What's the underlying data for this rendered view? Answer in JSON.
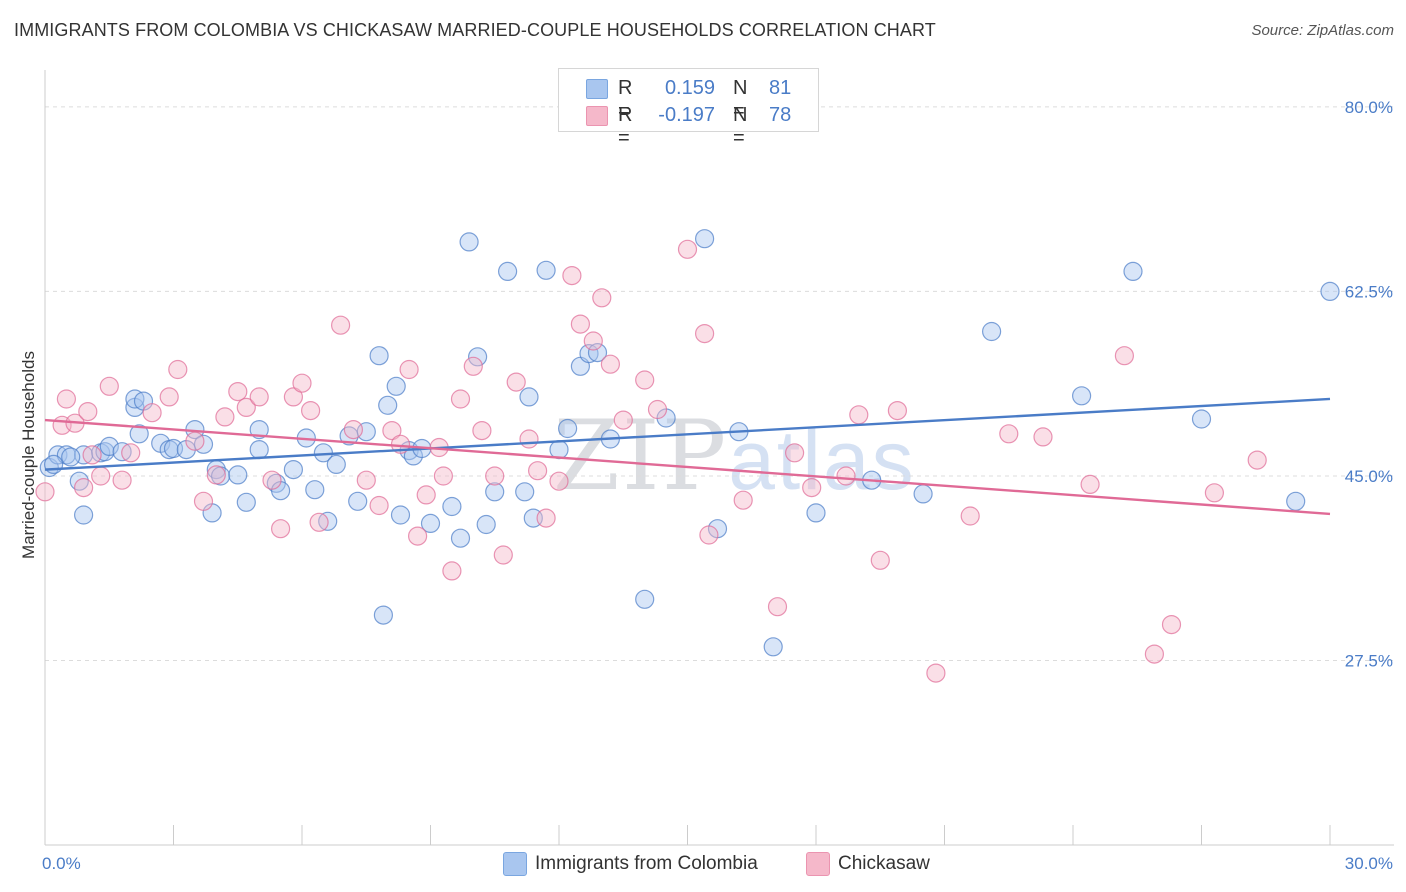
{
  "header": {
    "title": "IMMIGRANTS FROM COLOMBIA VS CHICKASAW MARRIED-COUPLE HOUSEHOLDS CORRELATION CHART",
    "source": "Source: ZipAtlas.com"
  },
  "watermark": {
    "zip": "ZIP",
    "atlas": "atlas"
  },
  "legend": {
    "rows": [
      {
        "r_label": "R =",
        "r_value": "0.159",
        "n_label": "N =",
        "n_value": "81",
        "color": "#a9c6ef"
      },
      {
        "r_label": "R =",
        "r_value": "-0.197",
        "n_label": "N =",
        "n_value": "78",
        "color": "#f5b8ca"
      }
    ]
  },
  "chart_data": {
    "type": "scatter",
    "title": "IMMIGRANTS FROM COLOMBIA VS CHICKASAW MARRIED-COUPLE HOUSEHOLDS CORRELATION CHART",
    "xlabel": "",
    "ylabel": "Married-couple Households",
    "xlim": [
      0,
      30
    ],
    "ylim": [
      10,
      83.5
    ],
    "x_tick_labels": [
      "0.0%",
      "30.0%"
    ],
    "y_ticks": [
      27.5,
      45.0,
      62.5,
      80.0
    ],
    "y_tick_labels": [
      "27.5%",
      "45.0%",
      "62.5%",
      "80.0%"
    ],
    "grid": true,
    "series": [
      {
        "name": "Immigrants from Colombia",
        "color": "#4a7cc7",
        "fill": "#a9c6ef",
        "trend": [
          [
            0,
            45.6
          ],
          [
            30,
            52.3
          ]
        ],
        "points": [
          [
            0.1,
            45.8
          ],
          [
            0.3,
            47.0
          ],
          [
            0.5,
            47.0
          ],
          [
            0.8,
            44.5
          ],
          [
            0.9,
            47.0
          ],
          [
            0.9,
            41.3
          ],
          [
            1.3,
            47.2
          ],
          [
            1.4,
            47.3
          ],
          [
            1.5,
            47.8
          ],
          [
            1.8,
            47.3
          ],
          [
            2.1,
            51.5
          ],
          [
            2.1,
            52.3
          ],
          [
            2.2,
            49.0
          ],
          [
            2.3,
            52.1
          ],
          [
            2.7,
            48.1
          ],
          [
            2.9,
            47.5
          ],
          [
            3.0,
            47.6
          ],
          [
            3.3,
            47.5
          ],
          [
            3.5,
            49.4
          ],
          [
            3.7,
            48.0
          ],
          [
            3.9,
            41.5
          ],
          [
            4.0,
            45.6
          ],
          [
            4.1,
            45.0
          ],
          [
            4.5,
            45.1
          ],
          [
            4.7,
            42.5
          ],
          [
            5.0,
            49.4
          ],
          [
            5.0,
            47.5
          ],
          [
            5.4,
            44.3
          ],
          [
            5.5,
            43.6
          ],
          [
            5.8,
            45.6
          ],
          [
            6.1,
            48.6
          ],
          [
            6.3,
            43.7
          ],
          [
            6.5,
            47.2
          ],
          [
            6.6,
            40.7
          ],
          [
            6.8,
            46.1
          ],
          [
            7.1,
            48.8
          ],
          [
            7.3,
            42.6
          ],
          [
            7.5,
            49.2
          ],
          [
            7.8,
            56.4
          ],
          [
            7.9,
            31.8
          ],
          [
            8.0,
            51.7
          ],
          [
            8.2,
            53.5
          ],
          [
            8.3,
            41.3
          ],
          [
            8.5,
            47.4
          ],
          [
            8.6,
            46.9
          ],
          [
            8.8,
            47.6
          ],
          [
            9.0,
            40.5
          ],
          [
            9.5,
            42.1
          ],
          [
            9.7,
            39.1
          ],
          [
            9.9,
            67.2
          ],
          [
            10.1,
            56.3
          ],
          [
            10.3,
            40.4
          ],
          [
            10.5,
            43.5
          ],
          [
            10.8,
            64.4
          ],
          [
            11.2,
            43.5
          ],
          [
            11.3,
            52.5
          ],
          [
            11.4,
            41.0
          ],
          [
            11.7,
            64.5
          ],
          [
            12.0,
            47.5
          ],
          [
            12.2,
            49.5
          ],
          [
            12.5,
            55.4
          ],
          [
            12.7,
            56.6
          ],
          [
            12.9,
            56.7
          ],
          [
            13.2,
            48.5
          ],
          [
            14.0,
            33.3
          ],
          [
            14.5,
            50.5
          ],
          [
            15.4,
            67.5
          ],
          [
            15.7,
            40.0
          ],
          [
            16.2,
            49.2
          ],
          [
            17.0,
            28.8
          ],
          [
            18.0,
            41.5
          ],
          [
            19.3,
            44.6
          ],
          [
            20.5,
            43.3
          ],
          [
            22.1,
            58.7
          ],
          [
            24.2,
            52.6
          ],
          [
            25.4,
            64.4
          ],
          [
            27.0,
            50.4
          ],
          [
            29.2,
            42.6
          ],
          [
            30.0,
            62.5
          ],
          [
            0.2,
            46.1
          ],
          [
            0.6,
            46.8
          ]
        ]
      },
      {
        "name": "Chickasaw",
        "color": "#e06a96",
        "fill": "#f5b8ca",
        "trend": [
          [
            0,
            50.3
          ],
          [
            30,
            41.4
          ]
        ],
        "points": [
          [
            0.0,
            43.5
          ],
          [
            0.4,
            49.8
          ],
          [
            0.5,
            52.3
          ],
          [
            0.7,
            50.0
          ],
          [
            0.9,
            43.9
          ],
          [
            1.0,
            51.1
          ],
          [
            1.1,
            47.0
          ],
          [
            1.3,
            45.0
          ],
          [
            1.5,
            53.5
          ],
          [
            1.8,
            44.6
          ],
          [
            2.0,
            47.2
          ],
          [
            2.5,
            51.0
          ],
          [
            2.9,
            52.5
          ],
          [
            3.1,
            55.1
          ],
          [
            3.5,
            48.3
          ],
          [
            3.7,
            42.6
          ],
          [
            4.0,
            45.1
          ],
          [
            4.2,
            50.6
          ],
          [
            4.5,
            53.0
          ],
          [
            4.7,
            51.5
          ],
          [
            5.0,
            52.5
          ],
          [
            5.3,
            44.6
          ],
          [
            5.5,
            40.0
          ],
          [
            5.8,
            52.5
          ],
          [
            6.0,
            53.8
          ],
          [
            6.2,
            51.2
          ],
          [
            6.4,
            40.6
          ],
          [
            6.9,
            59.3
          ],
          [
            7.2,
            49.4
          ],
          [
            7.5,
            44.6
          ],
          [
            7.8,
            42.2
          ],
          [
            8.1,
            49.3
          ],
          [
            8.3,
            48.0
          ],
          [
            8.5,
            55.1
          ],
          [
            8.7,
            39.3
          ],
          [
            8.9,
            43.2
          ],
          [
            9.2,
            47.7
          ],
          [
            9.3,
            45.0
          ],
          [
            9.5,
            36.0
          ],
          [
            9.7,
            52.3
          ],
          [
            10.0,
            55.4
          ],
          [
            10.2,
            49.3
          ],
          [
            10.5,
            45.0
          ],
          [
            10.7,
            37.5
          ],
          [
            11.0,
            53.9
          ],
          [
            11.3,
            48.5
          ],
          [
            11.5,
            45.5
          ],
          [
            11.7,
            41.0
          ],
          [
            12.0,
            44.5
          ],
          [
            12.3,
            64.0
          ],
          [
            12.5,
            59.4
          ],
          [
            12.8,
            57.8
          ],
          [
            13.0,
            61.9
          ],
          [
            13.2,
            55.6
          ],
          [
            13.5,
            50.3
          ],
          [
            14.0,
            54.1
          ],
          [
            14.3,
            51.3
          ],
          [
            15.0,
            66.5
          ],
          [
            15.4,
            58.5
          ],
          [
            15.5,
            39.4
          ],
          [
            16.3,
            42.7
          ],
          [
            17.1,
            32.6
          ],
          [
            17.5,
            47.2
          ],
          [
            17.9,
            43.9
          ],
          [
            18.7,
            45.0
          ],
          [
            19.0,
            50.8
          ],
          [
            19.5,
            37.0
          ],
          [
            19.9,
            51.2
          ],
          [
            20.8,
            26.3
          ],
          [
            21.6,
            41.2
          ],
          [
            22.5,
            49.0
          ],
          [
            23.3,
            48.7
          ],
          [
            24.4,
            44.2
          ],
          [
            25.2,
            56.4
          ],
          [
            25.9,
            28.1
          ],
          [
            26.3,
            30.9
          ],
          [
            27.3,
            43.4
          ],
          [
            28.3,
            46.5
          ]
        ]
      }
    ]
  },
  "bottom_legend": [
    {
      "label": "Immigrants from Colombia",
      "color": "#a9c6ef"
    },
    {
      "label": "Chickasaw",
      "color": "#f5b8ca"
    }
  ]
}
